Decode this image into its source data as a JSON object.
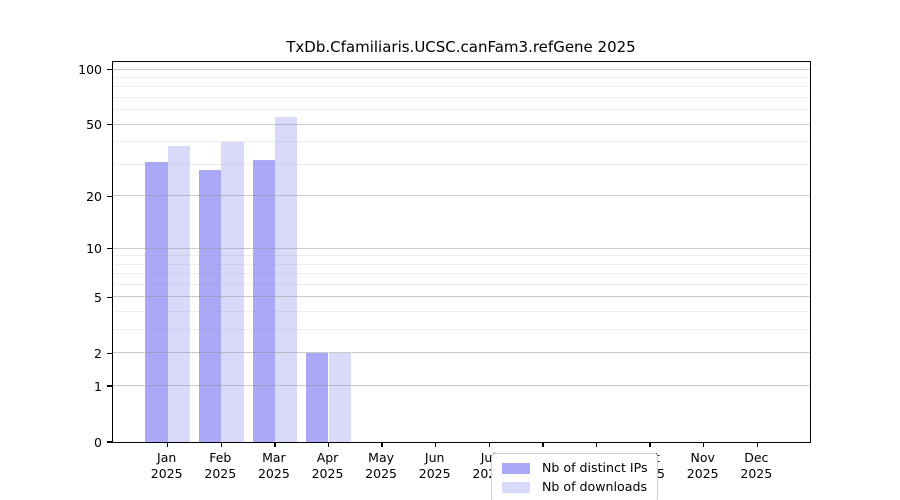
{
  "chart_data": {
    "type": "bar",
    "title": "TxDb.Cfamiliaris.UCSC.canFam3.refGene 2025",
    "categories": [
      "Jan",
      "Feb",
      "Mar",
      "Apr",
      "May",
      "Jun",
      "Jul",
      "Aug",
      "Sep",
      "Oct",
      "Nov",
      "Dec"
    ],
    "year_label": "2025",
    "series": [
      {
        "name": "Nb of distinct IPs",
        "color": "#a9a9f7",
        "values": [
          31,
          28,
          32,
          2,
          0,
          0,
          0,
          0,
          0,
          0,
          0,
          0
        ]
      },
      {
        "name": "Nb of downloads",
        "color": "#d9d9fa",
        "values": [
          38,
          40,
          55,
          2,
          0,
          0,
          0,
          0,
          0,
          0,
          0,
          0
        ]
      }
    ],
    "xlabel": "",
    "ylabel": "",
    "y_axis": {
      "scale": "log1p",
      "ticks": [
        0,
        1,
        2,
        5,
        10,
        20,
        50,
        100
      ],
      "minor_ticks": [
        3,
        4,
        6,
        7,
        8,
        9,
        30,
        40,
        60,
        70,
        80,
        90
      ],
      "max": 110
    },
    "grid": true,
    "legend_position": "lower center"
  },
  "colors": {
    "axis": "#000000",
    "grid_major": "rgba(150,150,150,0.50)",
    "grid_minor": "rgba(150,150,150,0.16)",
    "background": "#ffffff"
  }
}
